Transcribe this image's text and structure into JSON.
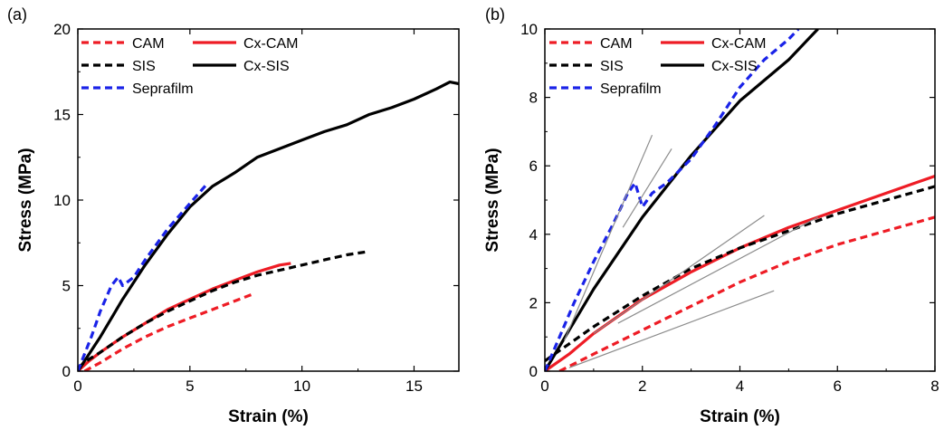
{
  "chart_data": [
    {
      "type": "line",
      "panel_label": "(a)",
      "xlabel": "Strain (%)",
      "ylabel": "Stress (MPa)",
      "xlim": [
        0,
        17
      ],
      "ylim": [
        0,
        20
      ],
      "x_ticks": [
        0,
        5,
        10,
        15
      ],
      "y_ticks": [
        0,
        5,
        10,
        15,
        20
      ],
      "legend_position": "top-left",
      "series": [
        {
          "name": "CAM",
          "color": "#ee1c25",
          "dash": true,
          "points": [
            [
              0.3,
              0
            ],
            [
              1,
              0.5
            ],
            [
              2,
              1.3
            ],
            [
              3,
              2
            ],
            [
              4,
              2.6
            ],
            [
              5,
              3.1
            ],
            [
              6,
              3.6
            ],
            [
              7,
              4.1
            ],
            [
              7.8,
              4.5
            ]
          ]
        },
        {
          "name": "Cx-CAM",
          "color": "#ee1c25",
          "dash": false,
          "points": [
            [
              0,
              0
            ],
            [
              0.5,
              0.6
            ],
            [
              1,
              1.1
            ],
            [
              2,
              2
            ],
            [
              3,
              2.8
            ],
            [
              4,
              3.6
            ],
            [
              5,
              4.2
            ],
            [
              6,
              4.8
            ],
            [
              7,
              5.3
            ],
            [
              8,
              5.8
            ],
            [
              9,
              6.2
            ],
            [
              9.5,
              6.3
            ]
          ]
        },
        {
          "name": "SIS",
          "color": "#000000",
          "dash": true,
          "points": [
            [
              0,
              0.2
            ],
            [
              0.5,
              0.7
            ],
            [
              1,
              1.1
            ],
            [
              2,
              2
            ],
            [
              3,
              2.8
            ],
            [
              4,
              3.5
            ],
            [
              5,
              4.1
            ],
            [
              6,
              4.7
            ],
            [
              7,
              5.2
            ],
            [
              8,
              5.6
            ],
            [
              9,
              5.9
            ],
            [
              10,
              6.2
            ],
            [
              11,
              6.5
            ],
            [
              12,
              6.8
            ],
            [
              13,
              7
            ]
          ]
        },
        {
          "name": "Cx-SIS",
          "color": "#000000",
          "dash": false,
          "points": [
            [
              0,
              0
            ],
            [
              0.5,
              1
            ],
            [
              1,
              2
            ],
            [
              2,
              4.2
            ],
            [
              3,
              6.2
            ],
            [
              4,
              8
            ],
            [
              5,
              9.6
            ],
            [
              6,
              10.8
            ],
            [
              7,
              11.6
            ],
            [
              8,
              12.5
            ],
            [
              9,
              13
            ],
            [
              10,
              13.5
            ],
            [
              11,
              14
            ],
            [
              12,
              14.4
            ],
            [
              13,
              15
            ],
            [
              14,
              15.4
            ],
            [
              15,
              15.9
            ],
            [
              16,
              16.5
            ],
            [
              16.6,
              16.9
            ],
            [
              17,
              16.8
            ]
          ]
        },
        {
          "name": "Seprafilm",
          "color": "#1a23e8",
          "dash": true,
          "points": [
            [
              0,
              0
            ],
            [
              0.3,
              1
            ],
            [
              0.6,
              2
            ],
            [
              1,
              3.5
            ],
            [
              1.5,
              5
            ],
            [
              1.8,
              5.5
            ],
            [
              2,
              5
            ],
            [
              2.5,
              5.5
            ],
            [
              3,
              6.5
            ],
            [
              4,
              8.3
            ],
            [
              5,
              9.8
            ],
            [
              5.8,
              11
            ]
          ]
        }
      ]
    },
    {
      "type": "line",
      "panel_label": "(b)",
      "xlabel": "Strain (%)",
      "ylabel": "Stress (MPa)",
      "xlim": [
        0,
        8
      ],
      "ylim": [
        0,
        10
      ],
      "x_ticks": [
        0,
        2,
        4,
        6,
        8
      ],
      "y_ticks": [
        0,
        2,
        4,
        6,
        8,
        10
      ],
      "legend_position": "top-left",
      "series": [
        {
          "name": "CAM",
          "color": "#ee1c25",
          "dash": true,
          "points": [
            [
              0.3,
              0
            ],
            [
              1,
              0.5
            ],
            [
              2,
              1.2
            ],
            [
              3,
              1.9
            ],
            [
              4,
              2.6
            ],
            [
              5,
              3.2
            ],
            [
              6,
              3.7
            ],
            [
              7,
              4.1
            ],
            [
              8,
              4.5
            ]
          ]
        },
        {
          "name": "Cx-CAM",
          "color": "#ee1c25",
          "dash": false,
          "points": [
            [
              0,
              0
            ],
            [
              0.5,
              0.5
            ],
            [
              1,
              1.1
            ],
            [
              2,
              2.1
            ],
            [
              3,
              2.9
            ],
            [
              4,
              3.6
            ],
            [
              5,
              4.2
            ],
            [
              6,
              4.7
            ],
            [
              7,
              5.2
            ],
            [
              8,
              5.7
            ]
          ]
        },
        {
          "name": "SIS",
          "color": "#000000",
          "dash": true,
          "points": [
            [
              0,
              0.3
            ],
            [
              0.5,
              0.8
            ],
            [
              1,
              1.3
            ],
            [
              2,
              2.2
            ],
            [
              3,
              3
            ],
            [
              4,
              3.6
            ],
            [
              5,
              4.1
            ],
            [
              6,
              4.6
            ],
            [
              7,
              5
            ],
            [
              8,
              5.4
            ]
          ]
        },
        {
          "name": "Cx-SIS",
          "color": "#000000",
          "dash": false,
          "points": [
            [
              0,
              0
            ],
            [
              0.5,
              1.2
            ],
            [
              1,
              2.4
            ],
            [
              2,
              4.5
            ],
            [
              3,
              6.3
            ],
            [
              4,
              7.9
            ],
            [
              5,
              9.1
            ],
            [
              5.6,
              10
            ]
          ]
        },
        {
          "name": "Seprafilm",
          "color": "#1a23e8",
          "dash": true,
          "points": [
            [
              0,
              0
            ],
            [
              0.3,
              1
            ],
            [
              0.6,
              2
            ],
            [
              1,
              3.2
            ],
            [
              1.4,
              4.3
            ],
            [
              1.7,
              5.2
            ],
            [
              1.85,
              5.5
            ],
            [
              2,
              4.8
            ],
            [
              2.2,
              5.2
            ],
            [
              2.5,
              5.5
            ],
            [
              3,
              6.2
            ],
            [
              3.5,
              7.2
            ],
            [
              4,
              8.3
            ],
            [
              4.5,
              9.1
            ],
            [
              5,
              9.7
            ],
            [
              5.2,
              10
            ]
          ]
        }
      ],
      "reference_lines": [
        {
          "color": "#8c8c8c",
          "points": [
            [
              0.4,
              0.9
            ],
            [
              2.2,
              6.9
            ]
          ]
        },
        {
          "color": "#8c8c8c",
          "points": [
            [
              1.6,
              4.2
            ],
            [
              2.6,
              6.5
            ]
          ]
        },
        {
          "color": "#8c8c8c",
          "points": [
            [
              1,
              1.1
            ],
            [
              4.5,
              4.55
            ]
          ]
        },
        {
          "color": "#8c8c8c",
          "points": [
            [
              1.5,
              1.4
            ],
            [
              5.6,
              4.5
            ]
          ]
        },
        {
          "color": "#8c8c8c",
          "points": [
            [
              0.5,
              0.1
            ],
            [
              4.7,
              2.35
            ]
          ]
        }
      ]
    }
  ]
}
